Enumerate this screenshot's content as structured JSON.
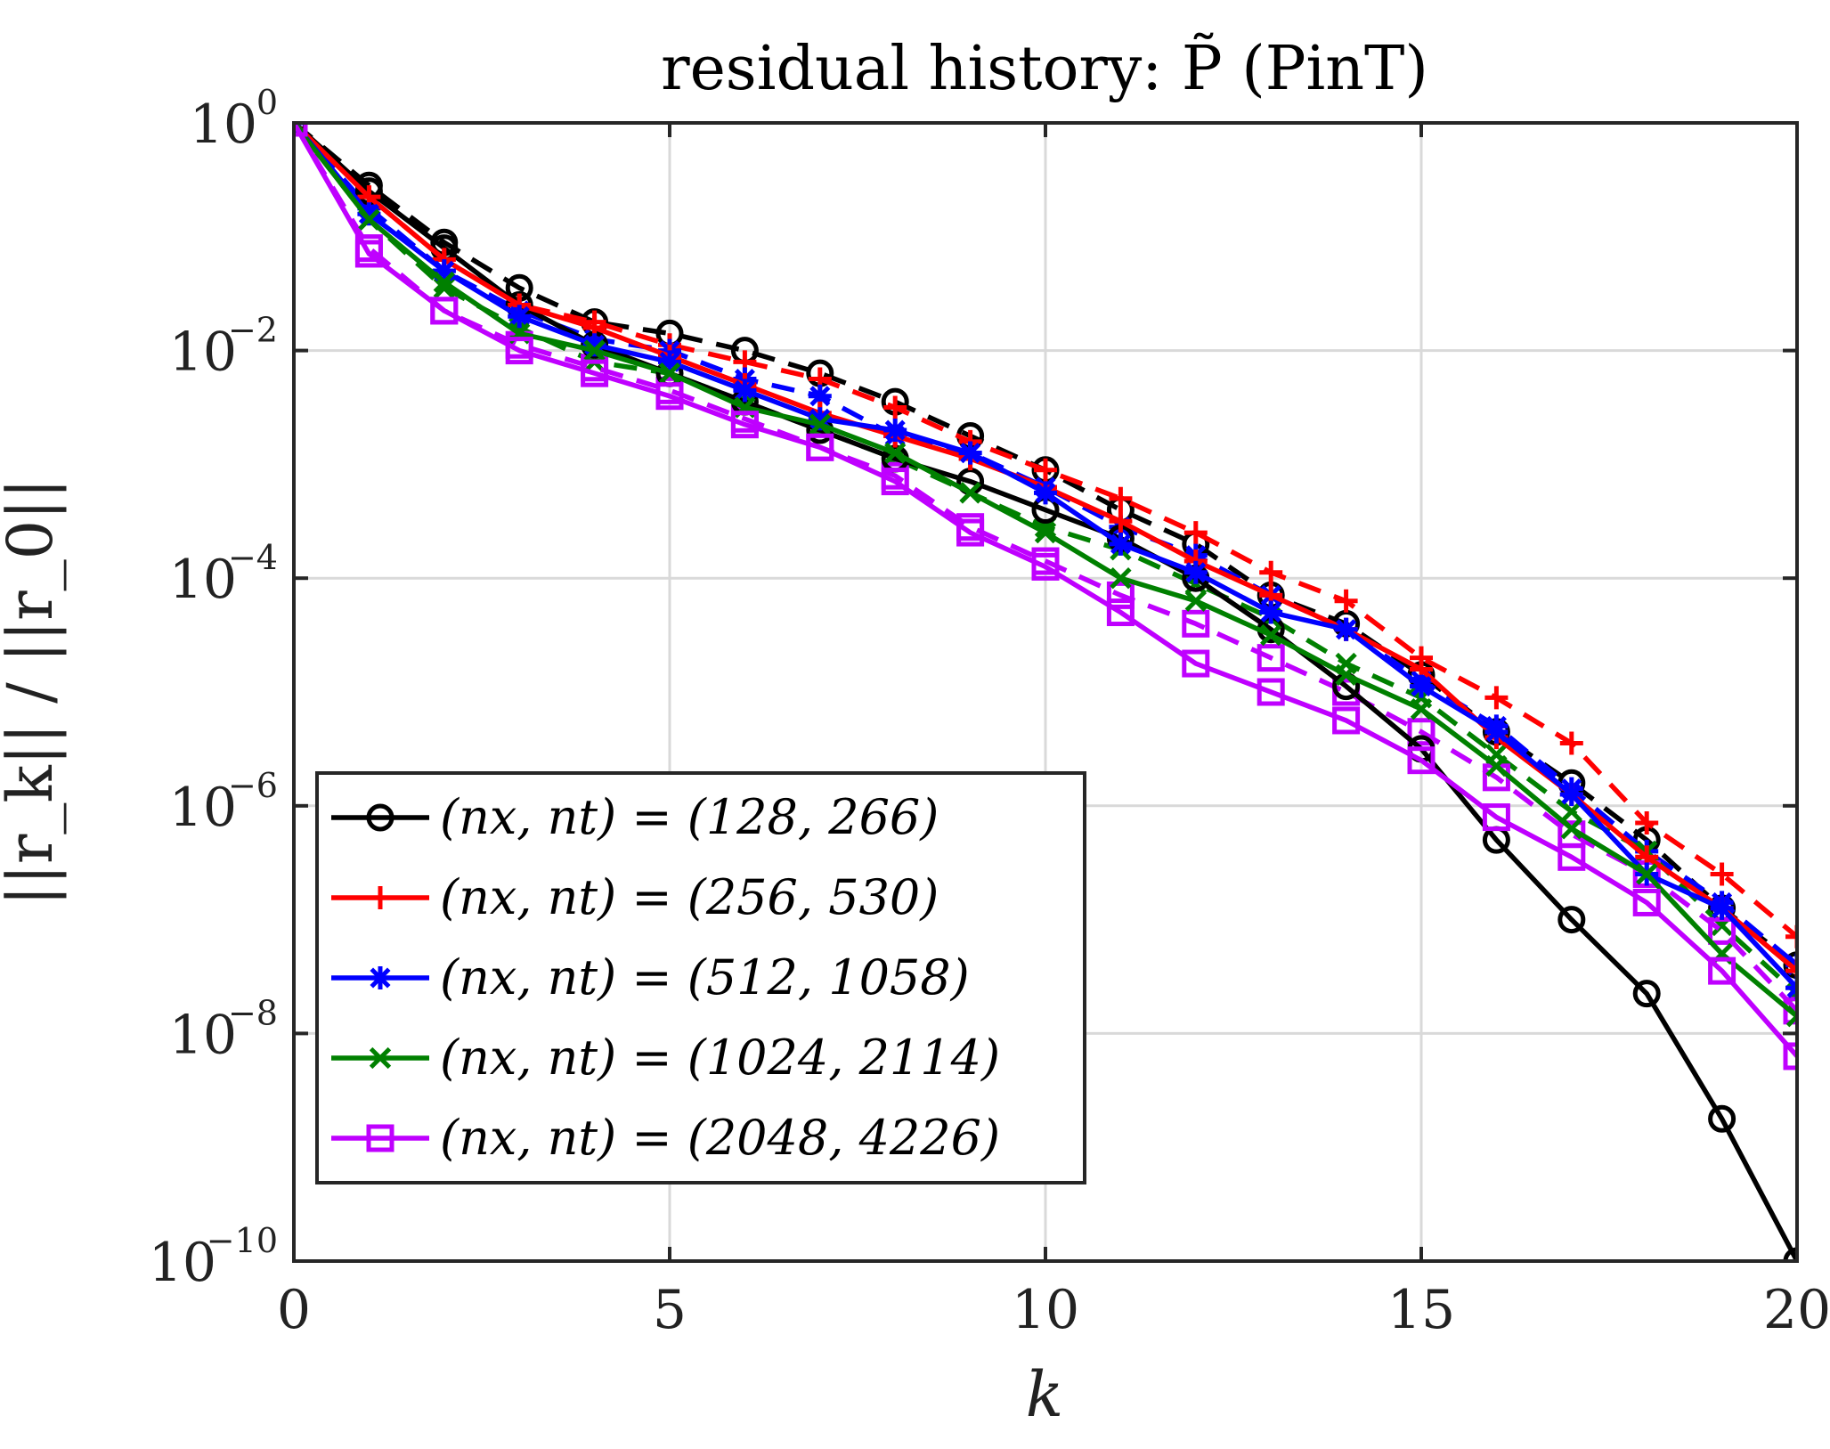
{
  "chart_data": {
    "type": "line",
    "title": "residual history: P̃ (PinT)",
    "xlabel": "k",
    "ylabel": "||r_k|| / ||r_0||",
    "xlim": [
      0,
      20
    ],
    "ylim_exponent": [
      -10,
      0
    ],
    "yscale": "log",
    "grid": true,
    "legend_position": "bottom-left",
    "x_ticks": [
      "0",
      "5",
      "10",
      "15",
      "20"
    ],
    "y_ticks": [
      {
        "base": "10",
        "exp": "0"
      },
      {
        "base": "10",
        "exp": "−2"
      },
      {
        "base": "10",
        "exp": "−4"
      },
      {
        "base": "10",
        "exp": "−6"
      },
      {
        "base": "10",
        "exp": "−8"
      },
      {
        "base": "10",
        "exp": "−10"
      }
    ],
    "x": [
      0,
      1,
      2,
      3,
      4,
      5,
      6,
      7,
      8,
      9,
      10,
      11,
      12,
      13,
      14,
      15,
      16,
      17,
      18,
      19,
      20
    ],
    "series": [
      {
        "name": "(n_x, n_t) = (128, 266)",
        "legend_label": "(nx, nt) = (128, 266)",
        "color": "#000000",
        "marker": "circle",
        "line": "solid",
        "log10_values": [
          0,
          -0.6,
          -1.1,
          -1.6,
          -1.95,
          -2.2,
          -2.45,
          -2.7,
          -2.95,
          -3.15,
          -3.4,
          -3.65,
          -4.0,
          -4.45,
          -4.95,
          -5.5,
          -6.3,
          -7.0,
          -7.65,
          -8.75,
          -10.0
        ]
      },
      {
        "name": "(128, 266) dashed",
        "color": "#000000",
        "marker": "circle",
        "line": "dashed",
        "log10_values": [
          0,
          -0.55,
          -1.05,
          -1.45,
          -1.75,
          -1.85,
          -2.0,
          -2.2,
          -2.45,
          -2.75,
          -3.05,
          -3.4,
          -3.7,
          -4.15,
          -4.4,
          -4.85,
          -5.35,
          -5.8,
          -6.3,
          -6.9,
          -7.4
        ]
      },
      {
        "name": "(n_x, n_t) = (256, 530)",
        "legend_label": "(nx, nt) = (256, 530)",
        "color": "#ff0000",
        "marker": "plus",
        "line": "solid",
        "log10_values": [
          0,
          -0.65,
          -1.2,
          -1.6,
          -1.8,
          -2.05,
          -2.3,
          -2.55,
          -2.75,
          -2.95,
          -3.2,
          -3.5,
          -3.85,
          -4.15,
          -4.45,
          -4.8,
          -5.4,
          -5.9,
          -6.45,
          -6.9,
          -7.45
        ]
      },
      {
        "name": "(256, 530) dashed",
        "color": "#ff0000",
        "marker": "plus",
        "line": "dashed",
        "log10_values": [
          0,
          -0.65,
          -1.2,
          -1.6,
          -1.75,
          -1.95,
          -2.1,
          -2.25,
          -2.5,
          -2.8,
          -3.05,
          -3.3,
          -3.6,
          -3.95,
          -4.2,
          -4.7,
          -5.05,
          -5.45,
          -6.15,
          -6.6,
          -7.15
        ]
      },
      {
        "name": "(n_x, n_t) = (512, 1058)",
        "legend_label": "(nx, nt) = (512, 1058)",
        "color": "#0000ff",
        "marker": "asterisk",
        "line": "solid",
        "log10_values": [
          0,
          -0.8,
          -1.3,
          -1.7,
          -1.95,
          -2.1,
          -2.35,
          -2.6,
          -2.7,
          -2.9,
          -3.25,
          -3.7,
          -3.95,
          -4.3,
          -4.45,
          -4.95,
          -5.35,
          -5.9,
          -6.6,
          -6.9,
          -7.6
        ]
      },
      {
        "name": "(512, 1058) dashed",
        "color": "#0000ff",
        "marker": "asterisk",
        "line": "dashed",
        "log10_values": [
          0,
          -0.75,
          -1.3,
          -1.65,
          -1.9,
          -2.0,
          -2.25,
          -2.4,
          -2.75,
          -2.9,
          -3.2,
          -3.55,
          -3.8,
          -4.15,
          -4.45,
          -4.9,
          -5.3,
          -5.85,
          -6.4,
          -6.85,
          -7.4
        ]
      },
      {
        "name": "(n_x, n_t) = (1024, 2114)",
        "legend_label": "(nx, nt) = (1024, 2114)",
        "color": "#008000",
        "marker": "cross",
        "line": "solid",
        "log10_values": [
          0,
          -0.85,
          -1.4,
          -1.85,
          -2.0,
          -2.2,
          -2.5,
          -2.65,
          -2.9,
          -3.25,
          -3.6,
          -4.0,
          -4.2,
          -4.5,
          -4.85,
          -5.15,
          -5.65,
          -6.2,
          -6.6,
          -7.3,
          -7.85
        ]
      },
      {
        "name": "(1024, 2114) dashed",
        "color": "#008000",
        "marker": "cross",
        "line": "dashed",
        "log10_values": [
          0,
          -0.85,
          -1.45,
          -1.8,
          -2.1,
          -2.2,
          -2.45,
          -2.7,
          -2.95,
          -3.25,
          -3.55,
          -3.75,
          -4.05,
          -4.35,
          -4.75,
          -5.05,
          -5.55,
          -6.05,
          -6.4,
          -7.05,
          -7.65
        ]
      },
      {
        "name": "(n_x, n_t) = (2048, 4226)",
        "legend_label": "(nx, nt) = (2048, 4226)",
        "color": "#bf00ff",
        "marker": "square",
        "line": "solid",
        "log10_values": [
          0,
          -1.15,
          -1.65,
          -2.0,
          -2.2,
          -2.4,
          -2.65,
          -2.85,
          -3.15,
          -3.6,
          -3.9,
          -4.3,
          -4.75,
          -5.0,
          -5.25,
          -5.6,
          -6.1,
          -6.45,
          -6.85,
          -7.45,
          -8.2
        ]
      },
      {
        "name": "(2048, 4226) dashed",
        "color": "#bf00ff",
        "marker": "square",
        "line": "dashed",
        "log10_values": [
          0,
          -1.1,
          -1.65,
          -1.95,
          -2.15,
          -2.35,
          -2.6,
          -2.85,
          -3.1,
          -3.55,
          -3.85,
          -4.15,
          -4.4,
          -4.7,
          -5.0,
          -5.35,
          -5.75,
          -6.25,
          -6.6,
          -7.1,
          -7.8
        ]
      }
    ]
  }
}
